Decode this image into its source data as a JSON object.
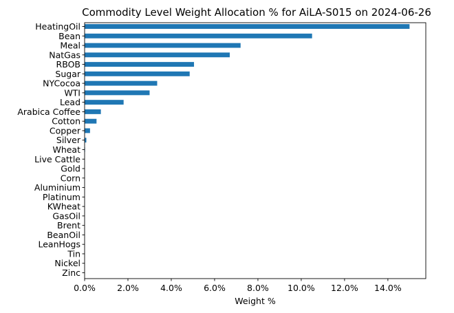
{
  "chart_data": {
    "type": "bar",
    "orientation": "horizontal",
    "title": "Commodity Level Weight Allocation % for AiLA-S015 on 2024-06-26",
    "xlabel": "Weight %",
    "ylabel": "",
    "xlim": [
      0,
      15.75
    ],
    "xticks": [
      0,
      2,
      4,
      6,
      8,
      10,
      12,
      14
    ],
    "xtick_labels": [
      "0.0%",
      "2.0%",
      "4.0%",
      "6.0%",
      "8.0%",
      "10.0%",
      "12.0%",
      "14.0%"
    ],
    "bar_color": "#1f77b4",
    "grid": false,
    "legend": "none",
    "categories": [
      "HeatingOil",
      "Bean",
      "Meal",
      "NatGas",
      "RBOB",
      "Sugar",
      "NYCocoa",
      "WTI",
      "Lead",
      "Arabica Coffee",
      "Cotton",
      "Copper",
      "Silver",
      "Wheat",
      "Live Cattle",
      "Gold",
      "Corn",
      "Aluminium",
      "Platinum",
      "KWheat",
      "GasOil",
      "Brent",
      "BeanOil",
      "LeanHogs",
      "Tin",
      "Nickel",
      "Zinc"
    ],
    "values": [
      15.0,
      10.5,
      7.2,
      6.7,
      5.05,
      4.85,
      3.35,
      3.0,
      1.8,
      0.75,
      0.55,
      0.25,
      0.08,
      0.02,
      0.0,
      0.0,
      0.0,
      0.0,
      0.0,
      0.0,
      0.0,
      0.0,
      0.0,
      0.0,
      0.0,
      0.0,
      0.0
    ]
  }
}
